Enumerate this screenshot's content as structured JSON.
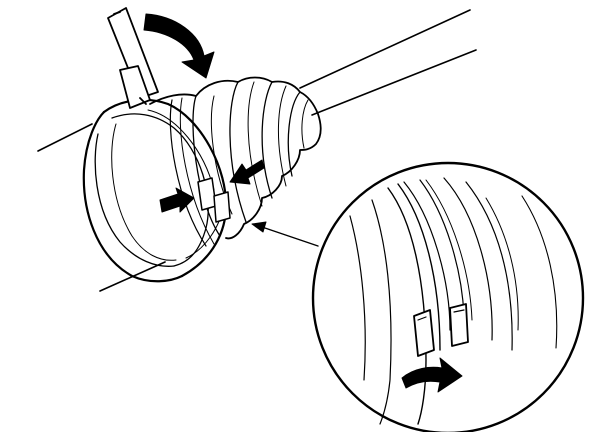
{
  "figure": {
    "caption": "",
    "parts": [
      "drive-shaft",
      "cv-boot",
      "boot-band-clamp",
      "band-tab",
      "detail-magnifier"
    ],
    "arrows": [
      "rotation-arrow",
      "tab-press-arrow-left",
      "tab-press-arrow-right",
      "leader-arrow",
      "tab-pull-arrow"
    ],
    "colors": {
      "ink": "#000000",
      "paper": "#ffffff"
    }
  }
}
